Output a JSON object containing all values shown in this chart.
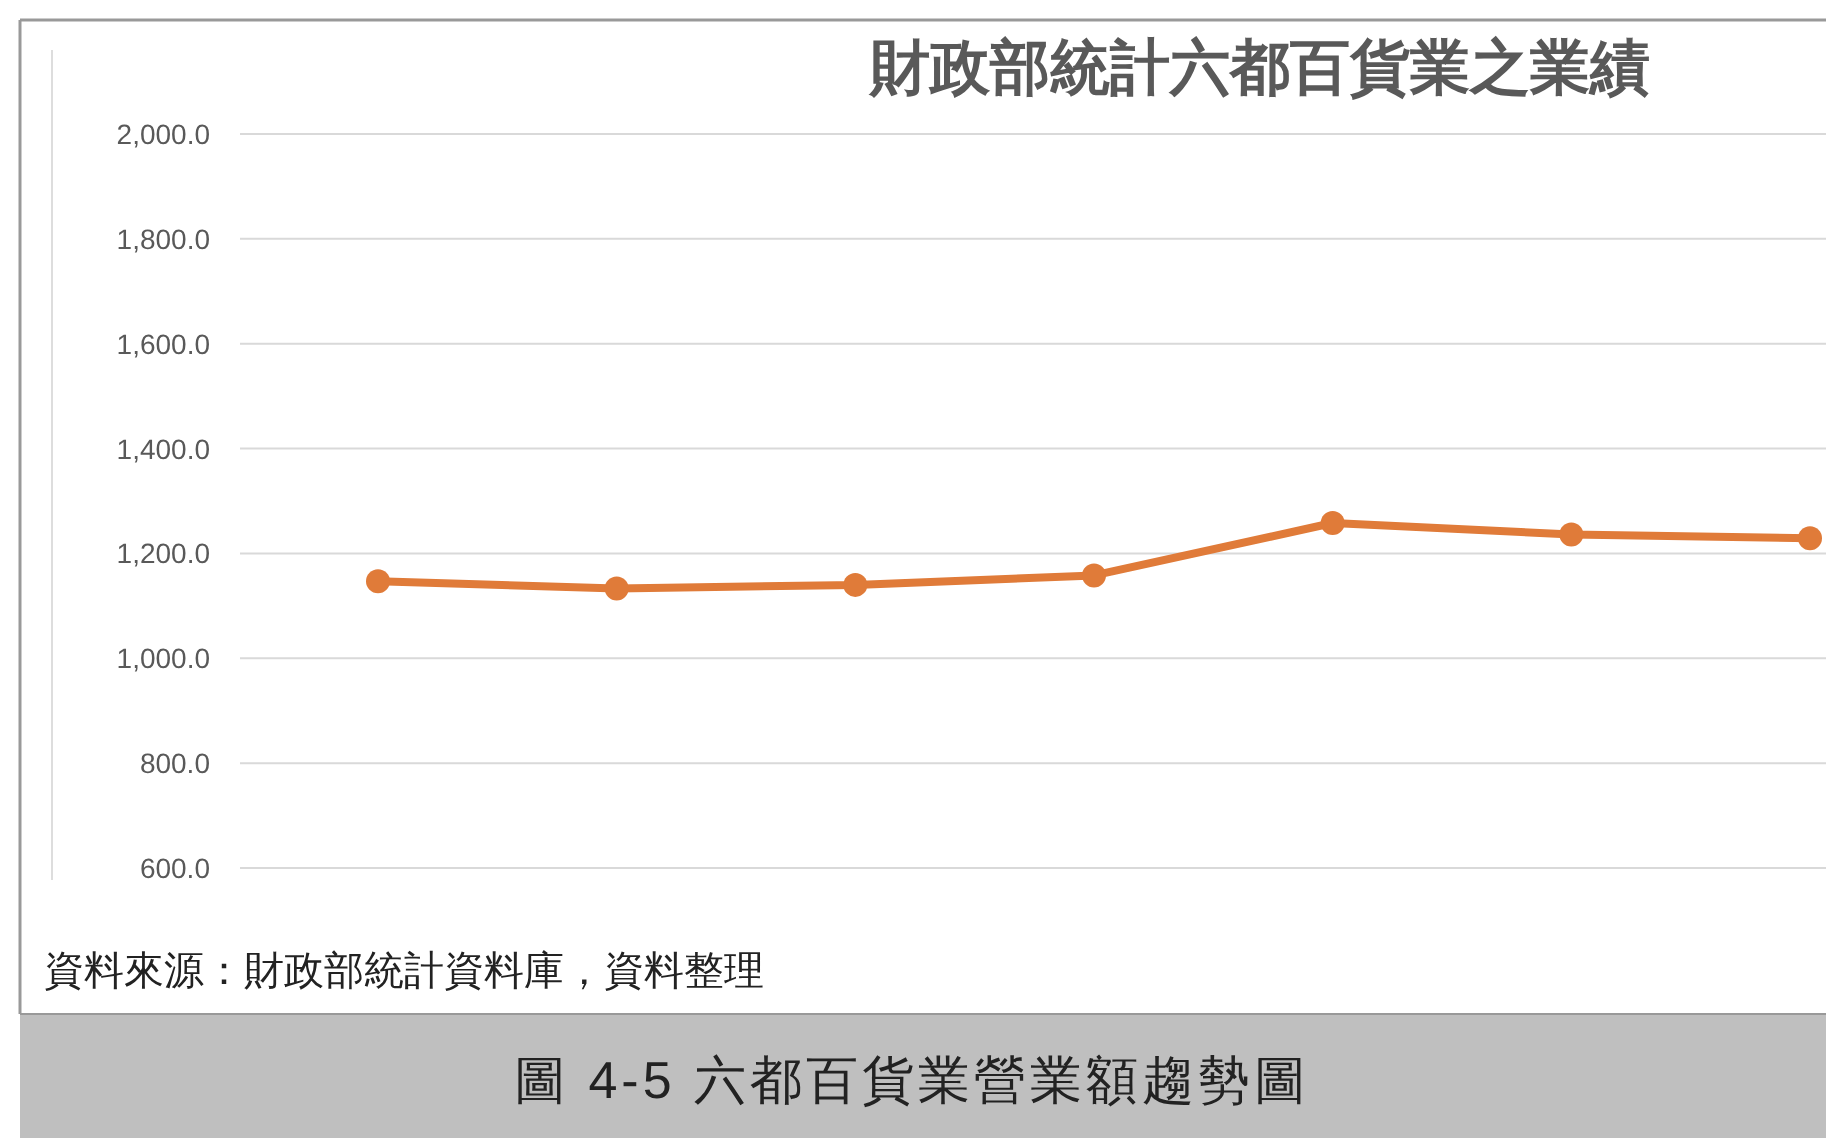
{
  "chart_data": {
    "type": "line",
    "title": "財政部統計六都百貨業之業績",
    "categories": [
      null,
      null,
      null,
      null,
      null,
      null,
      null
    ],
    "series": [
      {
        "color": "#e07b39",
        "values": [
          1147,
          1133,
          1140,
          1158,
          1258,
          1236,
          1229
        ]
      }
    ],
    "ylim": [
      600,
      2000
    ],
    "yticks": [
      {
        "value": 600,
        "label": "600.0"
      },
      {
        "value": 800,
        "label": "800.0"
      },
      {
        "value": 1000,
        "label": "1,000.0"
      },
      {
        "value": 1200,
        "label": "1,200.0"
      },
      {
        "value": 1400,
        "label": "1,400.0"
      },
      {
        "value": 1600,
        "label": "1,600.0"
      },
      {
        "value": 1800,
        "label": "1,800.0"
      },
      {
        "value": 2000,
        "label": "2,000.0"
      }
    ],
    "grid": "y",
    "marker": "circle",
    "line_style": "solid",
    "tick_labels": "y",
    "annotations": [
      "資料來源：財政部統計資料庫，資料整理",
      "圖 4-5  六都百貨業營業額趨勢圖"
    ]
  }
}
